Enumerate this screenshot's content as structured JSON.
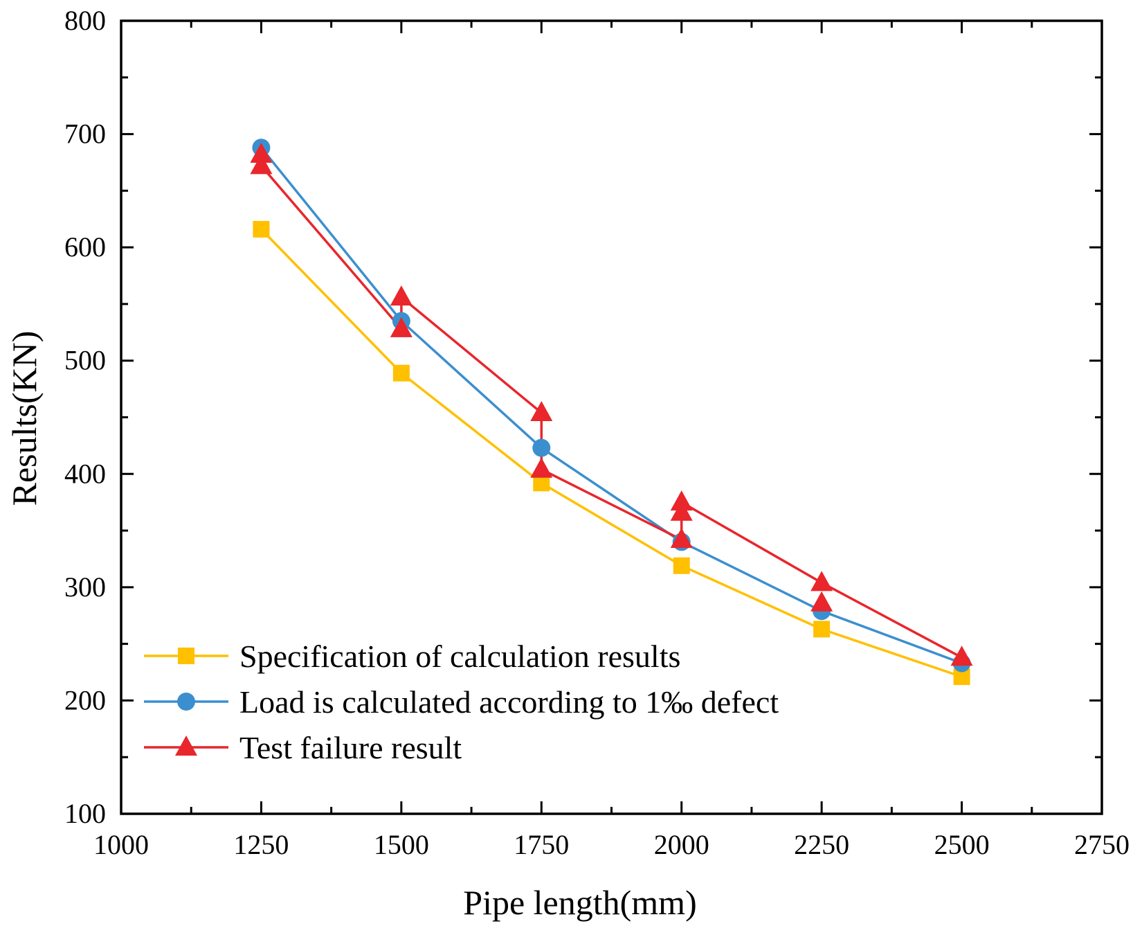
{
  "chart_data": {
    "type": "line",
    "title": "",
    "xlabel": "Pipe length(mm)",
    "ylabel": "Results(KN)",
    "xlim": [
      1000,
      2750
    ],
    "ylim": [
      100,
      800
    ],
    "xticks": [
      1000,
      1250,
      1500,
      1750,
      2000,
      2250,
      2500,
      2750
    ],
    "yticks": [
      100,
      200,
      300,
      400,
      500,
      600,
      700,
      800
    ],
    "grid": false,
    "legend_position": "bottom-left",
    "series": [
      {
        "name": "Specification of calculation results",
        "color": "#FFC000",
        "marker": "square",
        "points": [
          [
            1250,
            616
          ],
          [
            1500,
            489
          ],
          [
            1750,
            392
          ],
          [
            2000,
            319
          ],
          [
            2250,
            263
          ],
          [
            2500,
            221
          ]
        ]
      },
      {
        "name": "Load is calculated according to 1‰ defect",
        "color": "#3B8FCF",
        "marker": "circle",
        "points": [
          [
            1250,
            688
          ],
          [
            1500,
            535
          ],
          [
            1750,
            423
          ],
          [
            2000,
            340
          ],
          [
            2250,
            279
          ],
          [
            2500,
            233
          ]
        ]
      },
      {
        "name": "Test failure result",
        "color": "#E8262C",
        "marker": "triangle",
        "points": [
          [
            1250,
            682
          ],
          [
            1250,
            672
          ],
          [
            1500,
            556
          ],
          [
            1500,
            528
          ],
          [
            1750,
            454
          ],
          [
            1750,
            404
          ],
          [
            2000,
            375
          ],
          [
            2000,
            366
          ],
          [
            2000,
            342
          ],
          [
            2250,
            304
          ],
          [
            2250,
            286
          ],
          [
            2500,
            238
          ]
        ],
        "line_points": [
          [
            1250,
            672
          ],
          [
            1500,
            528
          ],
          [
            1500,
            556
          ],
          [
            1750,
            454
          ],
          [
            1750,
            404
          ],
          [
            2000,
            342
          ],
          [
            2000,
            375
          ],
          [
            2250,
            304
          ],
          [
            2500,
            238
          ]
        ]
      }
    ]
  }
}
